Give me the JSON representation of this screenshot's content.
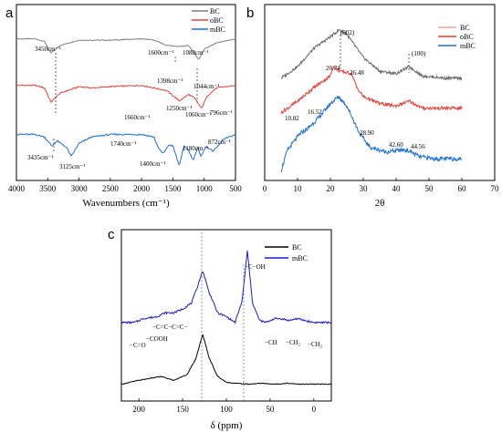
{
  "chart_data": [
    {
      "panel": "a",
      "type": "line",
      "xlabel": "Wavenumbers (cm⁻¹)",
      "ylabel": "",
      "xlim": [
        4000,
        500
      ],
      "xticks": [
        4000,
        3500,
        3000,
        2500,
        2000,
        1500,
        1000,
        500
      ],
      "legend": "top-right",
      "series": [
        {
          "name": "BC",
          "color": "#7f7f7f",
          "x": [
            4000,
            3700,
            3550,
            3450,
            3300,
            3000,
            2800,
            2500,
            2000,
            1800,
            1600,
            1400,
            1250,
            1088,
            1000,
            800,
            500
          ],
          "y": [
            5.0,
            5.0,
            4.9,
            4.45,
            4.75,
            4.95,
            4.95,
            4.95,
            5.0,
            4.95,
            4.75,
            4.7,
            4.75,
            4.2,
            4.6,
            4.85,
            5.0
          ]
        },
        {
          "name": "oBC",
          "color": "#e8413a",
          "x": [
            4000,
            3700,
            3550,
            3450,
            3300,
            3000,
            2800,
            2500,
            2000,
            1800,
            1600,
            1398,
            1250,
            1150,
            1044,
            950,
            800,
            500
          ],
          "y": [
            3.2,
            3.2,
            3.1,
            2.55,
            2.9,
            3.15,
            3.1,
            3.15,
            3.2,
            3.1,
            3.0,
            2.6,
            2.85,
            2.7,
            2.3,
            2.8,
            3.1,
            3.2
          ]
        },
        {
          "name": "mBC",
          "color": "#1e6fd9",
          "x": [
            4000,
            3700,
            3550,
            3435,
            3350,
            3200,
            3125,
            3000,
            2800,
            2500,
            2000,
            1800,
            1740,
            1660,
            1560,
            1500,
            1400,
            1320,
            1250,
            1180,
            1100,
            1060,
            960,
            872,
            796,
            700,
            500
          ],
          "y": [
            1.3,
            1.3,
            1.2,
            0.85,
            1.05,
            0.8,
            0.45,
            0.95,
            1.2,
            1.3,
            1.3,
            1.2,
            0.8,
            0.55,
            0.9,
            0.85,
            0.1,
            0.85,
            0.7,
            0.3,
            0.8,
            0.45,
            0.85,
            0.65,
            0.8,
            1.1,
            1.3
          ]
        }
      ],
      "annotations": {
        "bc_3450": "3450cm⁻¹",
        "bc_1600": "1600cm⁻¹",
        "bc_1088": "1088cm⁻¹",
        "obc_1398": "1398cm⁻¹",
        "obc_1044": "1044cm⁻¹",
        "mbc_1250": "1250cm⁻¹",
        "mbc_1060": "1060cm⁻¹",
        "mbc_796": "796cm⁻¹",
        "mbc_1660": "1660cm⁻¹",
        "mbc_1740": "1740cm⁻¹",
        "mbc_1180": "1180cm⁻¹",
        "mbc_872": "872cm⁻¹",
        "mbc_3435": "3435cm⁻¹",
        "mbc_3125": "3125cm⁻¹",
        "mbc_1400": "1400cm⁻¹"
      }
    },
    {
      "panel": "b",
      "type": "line",
      "xlabel": "2θ",
      "ylabel": "",
      "xlim": [
        0,
        70
      ],
      "xticks": [
        0,
        10,
        20,
        30,
        40,
        50,
        60,
        70
      ],
      "legend": "top-right",
      "series": [
        {
          "name": "BC",
          "color": "#6b6b6b",
          "x": [
            5,
            10,
            15,
            20,
            22.7,
            25,
            30,
            35,
            40,
            44,
            48,
            55,
            60
          ],
          "y": [
            4.0,
            4.5,
            5.3,
            5.8,
            6.1,
            5.9,
            4.9,
            4.3,
            4.2,
            4.5,
            4.1,
            4.0,
            4.0
          ]
        },
        {
          "name": "oBC",
          "color": "#e8413a",
          "x": [
            5,
            10,
            15,
            20,
            20.74,
            23,
            26.48,
            28,
            30,
            35,
            40,
            44,
            48,
            55,
            60
          ],
          "y": [
            2.5,
            3.0,
            3.6,
            4.1,
            4.5,
            4.3,
            4.2,
            3.6,
            3.2,
            2.9,
            2.8,
            3.0,
            2.7,
            2.7,
            2.7
          ]
        },
        {
          "name": "mBC",
          "color": "#1e6fd9",
          "x": [
            5,
            7,
            10.82,
            13,
            16.52,
            20,
            22.5,
            25,
            28.9,
            32,
            37,
            42.6,
            44.56,
            47,
            52,
            60
          ],
          "y": [
            0.0,
            0.9,
            1.6,
            1.8,
            2.3,
            2.9,
            3.2,
            2.8,
            1.6,
            1.0,
            0.8,
            0.9,
            0.8,
            0.6,
            0.5,
            0.5
          ]
        }
      ],
      "annotations": {
        "peak_002": "(002)",
        "peak_100": "(100)",
        "obc_2074": "20.74",
        "obc_2648": "26.48",
        "mbc_1082": "10.82",
        "mbc_1652": "16.52",
        "mbc_2890": "28.90",
        "mbc_4260": "42.60",
        "mbc_4456": "44.56"
      }
    },
    {
      "panel": "c",
      "type": "line",
      "xlabel": "δ (ppm)",
      "ylabel": "",
      "xlim": [
        220,
        -20
      ],
      "xticks": [
        200,
        150,
        100,
        50,
        0
      ],
      "legend": "top-right",
      "series": [
        {
          "name": "BC",
          "color": "#000000",
          "x": [
            220,
            200,
            175,
            160,
            145,
            135,
            127,
            120,
            110,
            100,
            90,
            75,
            60,
            45,
            30,
            15,
            0,
            -20
          ],
          "y": [
            0.4,
            0.6,
            0.8,
            0.6,
            0.9,
            1.7,
            3.0,
            1.8,
            0.8,
            0.5,
            0.45,
            0.4,
            0.45,
            0.4,
            0.45,
            0.4,
            0.4,
            0.4
          ]
        },
        {
          "name": "mBC",
          "color": "#1a1ad6",
          "x": [
            220,
            205,
            195,
            180,
            170,
            160,
            150,
            140,
            135,
            127,
            120,
            110,
            100,
            90,
            82,
            76,
            70,
            62,
            55,
            45,
            38,
            28,
            20,
            10,
            0,
            -20
          ],
          "y": [
            3.6,
            3.6,
            3.8,
            3.9,
            4.1,
            4.1,
            4.3,
            4.6,
            5.2,
            6.3,
            5.2,
            4.1,
            3.9,
            3.6,
            4.7,
            7.3,
            4.6,
            3.7,
            3.6,
            3.8,
            3.8,
            3.7,
            3.8,
            3.7,
            3.6,
            3.6
          ]
        }
      ],
      "annotations": {
        "coh": "−C−OH",
        "co": "−C=O",
        "cooh": "−COOH",
        "cc_chain": "−C=C−C=C−",
        "ch": "−CH",
        "ch2": "−CH₂",
        "ch3": "−CH₃"
      }
    }
  ],
  "panels": {
    "a": "a",
    "b": "b",
    "c": "c"
  }
}
